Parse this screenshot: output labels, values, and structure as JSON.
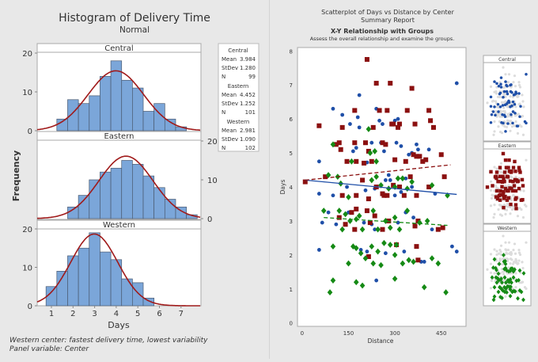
{
  "chart_data": [
    {
      "type": "bar",
      "title": "Histogram of Delivery Time",
      "subtitle": "Normal",
      "xlabel": "Days",
      "ylabel": "Frequency",
      "xticks": [
        1,
        2,
        3,
        4,
        5,
        6,
        7
      ],
      "yticks": [
        0,
        10,
        20
      ],
      "ylim": [
        0,
        20
      ],
      "bin_width": 0.5,
      "fit": "normal",
      "colors": {
        "bar": "#7ba6d9",
        "bar_edge": "#4a5a70",
        "fit": "#a01a1a"
      },
      "panels": [
        {
          "name": "Central",
          "bin_centers": [
            1.5,
            2,
            2.5,
            3,
            3.5,
            4,
            4.5,
            5,
            5.5,
            6,
            6.5,
            7
          ],
          "counts": [
            3,
            8,
            7,
            9,
            14,
            18,
            13,
            11,
            5,
            7,
            3,
            1
          ],
          "mean": 3.984,
          "stdev": 1.28,
          "n": 99
        },
        {
          "name": "Eastern",
          "bin_centers": [
            2,
            2.5,
            3,
            3.5,
            4,
            4.5,
            5,
            5.5,
            6,
            6.5,
            7,
            7.5
          ],
          "counts": [
            3,
            6,
            10,
            12,
            13,
            15,
            14,
            11,
            8,
            5,
            3,
            1
          ],
          "mean": 4.452,
          "stdev": 1.252,
          "n": 101
        },
        {
          "name": "Western",
          "bin_centers": [
            1,
            1.5,
            2,
            2.5,
            3,
            3.5,
            4,
            4.5,
            5,
            5.5
          ],
          "counts": [
            5,
            9,
            13,
            15,
            19,
            14,
            12,
            7,
            6,
            2
          ],
          "mean": 2.981,
          "stdev": 1.09,
          "n": 102
        }
      ],
      "legend": {
        "mean_label": "Mean",
        "stdev_label": "StDev",
        "n_label": "N",
        "rows": [
          {
            "name": "Central",
            "mean": "3.984",
            "stdev": "1.280",
            "n": "99"
          },
          {
            "name": "Eastern",
            "mean": "4.452",
            "stdev": "1.252",
            "n": "101"
          },
          {
            "name": "Western",
            "mean": "2.981",
            "stdev": "1.090",
            "n": "102"
          }
        ]
      },
      "footnotes": [
        "Western center: fastest delivery time, lowest variability",
        "Panel variable: Center"
      ]
    },
    {
      "type": "scatter",
      "title": "Scatterplot of Days vs Distance by Center",
      "subtitle": "Summary Report",
      "section_title": "X-Y Relationship with Groups",
      "section_subtitle": "Assess the overall relationship and examine the groups.",
      "xlabel": "Distance",
      "ylabel": "Days",
      "xlim": [
        -15,
        530
      ],
      "ylim": [
        -0.1,
        8.1
      ],
      "xticks": [
        0,
        150,
        300,
        450
      ],
      "yticks": [
        0,
        1,
        2,
        3,
        4,
        5,
        6,
        7,
        8
      ],
      "series": [
        {
          "name": "Central",
          "marker": "circle",
          "color": "#1f4fa8",
          "trend": {
            "style": "solid",
            "from": [
              10,
              4.2
            ],
            "to": [
              500,
              3.78
            ]
          },
          "points": [
            [
              55,
              4.75
            ],
            [
              100,
              6.3
            ],
            [
              130,
              6.12
            ],
            [
              155,
              5.85
            ],
            [
              165,
              5.05
            ],
            [
              175,
              5.15
            ],
            [
              180,
              6.05
            ],
            [
              185,
              6.7
            ],
            [
              185,
              5.75
            ],
            [
              210,
              4.72
            ],
            [
              225,
              5.3
            ],
            [
              240,
              6.3
            ],
            [
              250,
              5.95
            ],
            [
              255,
              5.3
            ],
            [
              260,
              5.85
            ],
            [
              265,
              5.05
            ],
            [
              300,
              5.95
            ],
            [
              305,
              5.3
            ],
            [
              310,
              6.0
            ],
            [
              320,
              5.2
            ],
            [
              345,
              4.95
            ],
            [
              355,
              5.0
            ],
            [
              370,
              5.25
            ],
            [
              375,
              5.1
            ],
            [
              500,
              7.05
            ],
            [
              410,
              5.1
            ],
            [
              145,
              4.0
            ],
            [
              55,
              3.8
            ],
            [
              100,
              3.75
            ],
            [
              175,
              3.75
            ],
            [
              205,
              3.9
            ],
            [
              235,
              3.95
            ],
            [
              270,
              4.2
            ],
            [
              285,
              4.2
            ],
            [
              300,
              3.75
            ],
            [
              320,
              3.85
            ],
            [
              335,
              4.25
            ],
            [
              355,
              4.0
            ],
            [
              430,
              3.8
            ],
            [
              65,
              2.95
            ],
            [
              110,
              2.9
            ],
            [
              200,
              2.95
            ],
            [
              225,
              2.9
            ],
            [
              235,
              2.75
            ],
            [
              310,
              2.95
            ],
            [
              335,
              3.25
            ],
            [
              360,
              3.1
            ],
            [
              420,
              2.75
            ],
            [
              55,
              2.15
            ],
            [
              190,
              2.15
            ],
            [
              210,
              2.1
            ],
            [
              270,
              2.05
            ],
            [
              330,
              2.1
            ],
            [
              385,
              1.8
            ],
            [
              395,
              1.8
            ],
            [
              485,
              2.25
            ],
            [
              500,
              2.1
            ],
            [
              240,
              1.25
            ],
            [
              150,
              3.25
            ],
            [
              85,
              3.25
            ],
            [
              280,
              4.35
            ],
            [
              255,
              4.05
            ]
          ]
        },
        {
          "name": "Eastern",
          "marker": "square",
          "color": "#8b1010",
          "trend": {
            "style": "dashed",
            "from": [
              10,
              4.2
            ],
            "to": [
              480,
              4.65
            ]
          },
          "points": [
            [
              55,
              5.8
            ],
            [
              110,
              5.25
            ],
            [
              120,
              5.3
            ],
            [
              125,
              5.1
            ],
            [
              130,
              5.75
            ],
            [
              145,
              4.75
            ],
            [
              170,
              6.25
            ],
            [
              170,
              5.3
            ],
            [
              175,
              4.75
            ],
            [
              200,
              4.7
            ],
            [
              205,
              5.3
            ],
            [
              210,
              7.75
            ],
            [
              215,
              5.05
            ],
            [
              225,
              4.75
            ],
            [
              230,
              5.75
            ],
            [
              240,
              7.05
            ],
            [
              250,
              6.25
            ],
            [
              260,
              5.3
            ],
            [
              270,
              5.25
            ],
            [
              275,
              6.25
            ],
            [
              285,
              7.05
            ],
            [
              290,
              5.85
            ],
            [
              295,
              5.85
            ],
            [
              300,
              4.8
            ],
            [
              310,
              5.75
            ],
            [
              315,
              5.85
            ],
            [
              335,
              4.75
            ],
            [
              340,
              6.25
            ],
            [
              355,
              6.9
            ],
            [
              360,
              4.95
            ],
            [
              365,
              5.85
            ],
            [
              370,
              4.9
            ],
            [
              380,
              4.9
            ],
            [
              390,
              4.75
            ],
            [
              400,
              4.8
            ],
            [
              410,
              6.25
            ],
            [
              415,
              5.95
            ],
            [
              425,
              5.75
            ],
            [
              450,
              4.95
            ],
            [
              10,
              4.15
            ],
            [
              75,
              4.3
            ],
            [
              130,
              3.75
            ],
            [
              175,
              3.75
            ],
            [
              195,
              4.2
            ],
            [
              215,
              3.65
            ],
            [
              240,
              4.0
            ],
            [
              260,
              3.8
            ],
            [
              265,
              3.75
            ],
            [
              275,
              3.75
            ],
            [
              295,
              4.05
            ],
            [
              315,
              4.0
            ],
            [
              330,
              3.75
            ],
            [
              350,
              4.3
            ],
            [
              370,
              3.75
            ],
            [
              410,
              4.0
            ],
            [
              460,
              4.3
            ],
            [
              160,
              3.25
            ],
            [
              175,
              3.35
            ],
            [
              210,
              3.3
            ],
            [
              235,
              3.15
            ],
            [
              260,
              2.75
            ],
            [
              170,
              2.75
            ],
            [
              220,
              2.95
            ],
            [
              280,
              3.0
            ],
            [
              365,
              2.85
            ],
            [
              375,
              3.0
            ],
            [
              440,
              2.75
            ],
            [
              455,
              2.8
            ],
            [
              305,
              2.3
            ],
            [
              370,
              2.25
            ],
            [
              375,
              1.85
            ],
            [
              215,
              1.95
            ],
            [
              120,
              3.1
            ],
            [
              140,
              2.9
            ]
          ]
        },
        {
          "name": "Western",
          "marker": "diamond",
          "color": "#158a15",
          "trend": {
            "style": "dashed",
            "from": [
              70,
              3.1
            ],
            "to": [
              470,
              2.87
            ]
          },
          "points": [
            [
              100,
              5.25
            ],
            [
              160,
              4.75
            ],
            [
              215,
              5.7
            ],
            [
              220,
              5.0
            ],
            [
              235,
              5.05
            ],
            [
              240,
              4.75
            ],
            [
              85,
              4.35
            ],
            [
              115,
              4.3
            ],
            [
              125,
              4.1
            ],
            [
              150,
              3.7
            ],
            [
              225,
              4.2
            ],
            [
              240,
              4.3
            ],
            [
              255,
              4.05
            ],
            [
              280,
              3.95
            ],
            [
              300,
              4.0
            ],
            [
              310,
              4.25
            ],
            [
              325,
              4.25
            ],
            [
              340,
              3.95
            ],
            [
              355,
              4.15
            ],
            [
              420,
              4.05
            ],
            [
              470,
              3.75
            ],
            [
              70,
              3.3
            ],
            [
              120,
              3.3
            ],
            [
              130,
              2.75
            ],
            [
              140,
              3.2
            ],
            [
              155,
              3.0
            ],
            [
              175,
              3.05
            ],
            [
              185,
              3.15
            ],
            [
              195,
              2.75
            ],
            [
              230,
              3.3
            ],
            [
              245,
              2.75
            ],
            [
              270,
              3.0
            ],
            [
              285,
              2.8
            ],
            [
              300,
              3.1
            ],
            [
              315,
              2.75
            ],
            [
              340,
              3.3
            ],
            [
              380,
              2.95
            ],
            [
              405,
              3.0
            ],
            [
              100,
              2.25
            ],
            [
              165,
              2.25
            ],
            [
              175,
              2.2
            ],
            [
              190,
              2.05
            ],
            [
              205,
              1.9
            ],
            [
              225,
              2.25
            ],
            [
              245,
              2.1
            ],
            [
              265,
              2.35
            ],
            [
              285,
              2.3
            ],
            [
              300,
              2.0
            ],
            [
              305,
              2.3
            ],
            [
              325,
              1.75
            ],
            [
              345,
              1.85
            ],
            [
              360,
              1.8
            ],
            [
              420,
              1.9
            ],
            [
              440,
              1.75
            ],
            [
              100,
              1.25
            ],
            [
              150,
              1.75
            ],
            [
              175,
              1.2
            ],
            [
              195,
              1.1
            ],
            [
              230,
              1.75
            ],
            [
              255,
              1.7
            ],
            [
              300,
              1.3
            ],
            [
              395,
              1.05
            ],
            [
              465,
              0.9
            ],
            [
              90,
              0.9
            ]
          ]
        }
      ],
      "other_group_color": "#dcdcdc"
    }
  ]
}
